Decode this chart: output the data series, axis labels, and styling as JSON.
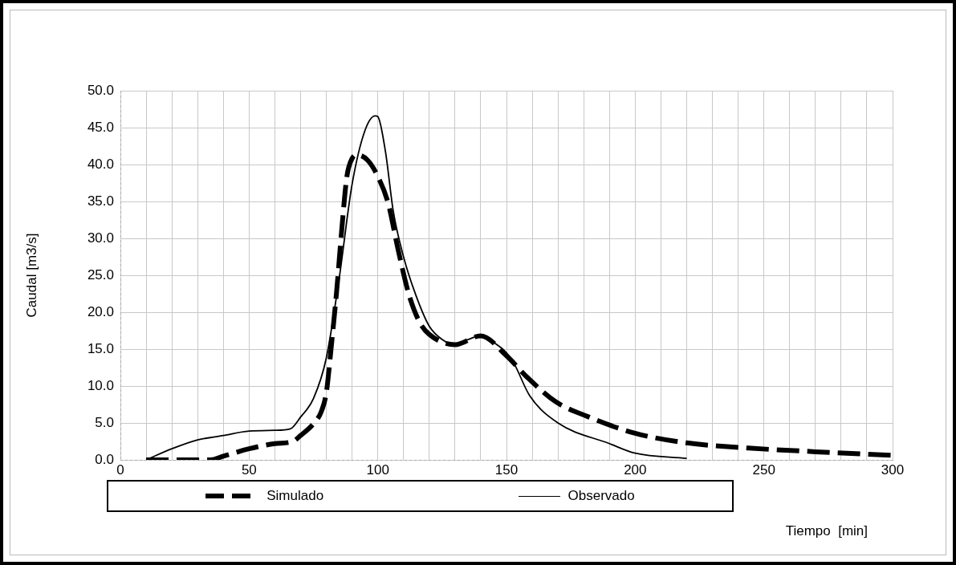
{
  "chart_data": {
    "type": "line",
    "xlabel": "Tiempo  [min]",
    "ylabel": "Caudal [m3/s]",
    "xlim": [
      0,
      300
    ],
    "ylim": [
      0,
      50
    ],
    "xticks": [
      0,
      {
        "value": 10,
        "label": null
      },
      {
        "value": 20,
        "label": null
      },
      {
        "value": 30,
        "label": null
      },
      {
        "value": 40,
        "label": null
      },
      50,
      {
        "value": 60,
        "label": null
      },
      {
        "value": 70,
        "label": null
      },
      {
        "value": 80,
        "label": null
      },
      {
        "value": 90,
        "label": null
      },
      100,
      {
        "value": 110,
        "label": null
      },
      {
        "value": 120,
        "label": null
      },
      {
        "value": 130,
        "label": null
      },
      {
        "value": 140,
        "label": null
      },
      150,
      {
        "value": 160,
        "label": null
      },
      {
        "value": 170,
        "label": null
      },
      {
        "value": 180,
        "label": null
      },
      {
        "value": 190,
        "label": null
      },
      200,
      {
        "value": 210,
        "label": null
      },
      {
        "value": 220,
        "label": null
      },
      {
        "value": 230,
        "label": null
      },
      {
        "value": 240,
        "label": null
      },
      250,
      {
        "value": 260,
        "label": null
      },
      {
        "value": 270,
        "label": null
      },
      {
        "value": 280,
        "label": null
      },
      {
        "value": 290,
        "label": null
      },
      300
    ],
    "yticks": [
      {
        "value": 0,
        "label": "0.0"
      },
      {
        "value": 5,
        "label": "5.0"
      },
      {
        "value": 10,
        "label": "10.0"
      },
      {
        "value": 15,
        "label": "15.0"
      },
      {
        "value": 20,
        "label": "20.0"
      },
      {
        "value": 25,
        "label": "25.0"
      },
      {
        "value": 30,
        "label": "30.0"
      },
      {
        "value": 35,
        "label": "35.0"
      },
      {
        "value": 40,
        "label": "40.0"
      },
      {
        "value": 45,
        "label": "45.0"
      },
      {
        "value": 50,
        "label": "50.0"
      }
    ],
    "grid": true,
    "legend": "bottom",
    "marker": "none",
    "series": [
      {
        "name": "Simulado",
        "color": "#000000",
        "line_style": "dashed",
        "x": [
          10,
          20,
          30,
          35,
          40,
          50,
          60,
          67,
          70,
          75,
          78,
          80,
          82,
          84,
          86,
          88,
          90,
          92,
          96,
          100,
          104,
          108,
          112,
          116,
          120,
          130,
          140,
          150,
          158,
          169,
          182,
          200,
          220,
          244,
          270,
          300
        ],
        "values": [
          0,
          0,
          0,
          0,
          0.5,
          1.5,
          2.2,
          2.5,
          3.3,
          4.9,
          6.5,
          9.1,
          15.6,
          22.8,
          31.2,
          38.4,
          40.8,
          41.3,
          40.6,
          38.4,
          34.8,
          28.3,
          22.5,
          18.8,
          17,
          15.6,
          16.8,
          14.1,
          11.2,
          7.9,
          5.8,
          3.6,
          2.3,
          1.6,
          1.1,
          0.6
        ]
      },
      {
        "name": "Observado",
        "color": "#000000",
        "line_style": "solid",
        "x": [
          10,
          20,
          30,
          40,
          50,
          60,
          66,
          70,
          75,
          80,
          85,
          90,
          95,
          99,
          100,
          103,
          106,
          110,
          115,
          120,
          125,
          130,
          135,
          140,
          145,
          150,
          153,
          159,
          170,
          190,
          200,
          220
        ],
        "values": [
          0,
          1.5,
          2.7,
          3.3,
          3.9,
          4,
          4.2,
          5.8,
          8.3,
          13.8,
          24.6,
          37.3,
          44.6,
          46.6,
          46.5,
          41.7,
          33.7,
          27.5,
          22.1,
          18.1,
          16.3,
          15.6,
          16.3,
          16.8,
          15.9,
          14.5,
          13,
          8.7,
          5,
          2.2,
          0.9,
          0.2
        ]
      }
    ]
  }
}
